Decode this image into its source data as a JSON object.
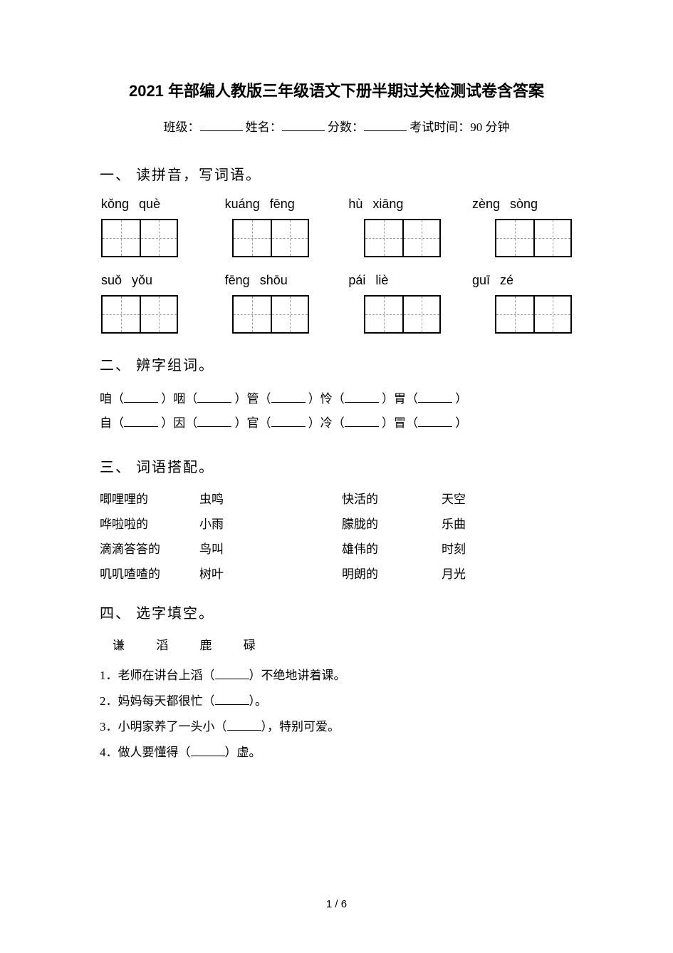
{
  "title": "2021 年部编人教版三年级语文下册半期过关检测试卷含答案",
  "header": {
    "class_label": "班级：",
    "name_label": "姓名：",
    "score_label": "分数：",
    "exam_time_label": "考试时间：90 分钟"
  },
  "section1": {
    "heading": "一、 读拼音，写词语。",
    "row1": [
      [
        "kǒng",
        "què"
      ],
      [
        "kuáng",
        "fēng"
      ],
      [
        "hù",
        "xiāng"
      ],
      [
        "zèng",
        "sòng"
      ]
    ],
    "row2": [
      [
        "suǒ",
        "yǒu"
      ],
      [
        "fēng",
        "shōu"
      ],
      [
        "pái",
        "liè"
      ],
      [
        "guī",
        "zé"
      ]
    ]
  },
  "section2": {
    "heading": "二、 辨字组词。",
    "line1": [
      "咱（",
      "）咽（",
      "）管（",
      "）怜（",
      "）胃（",
      "）"
    ],
    "line2": [
      "自（",
      "）因（",
      "）官（",
      "）冷（",
      "）冒（",
      "）"
    ]
  },
  "section3": {
    "heading": "三、 词语搭配。",
    "rows": [
      [
        "唧哩哩的",
        "虫鸣",
        "快活的",
        "天空"
      ],
      [
        "哗啦啦的",
        "小雨",
        "朦胧的",
        "乐曲"
      ],
      [
        "滴滴答答的",
        "鸟叫",
        "雄伟的",
        "时刻"
      ],
      [
        "叽叽喳喳的",
        "树叶",
        "明朗的",
        "月光"
      ]
    ]
  },
  "section4": {
    "heading": "四、 选字填空。",
    "chars": [
      "谦",
      "滔",
      "鹿",
      "碌"
    ],
    "lines": [
      "1．老师在讲台上滔（_____）不绝地讲着课。",
      "2．妈妈每天都很忙（_____）。",
      "3．小明家养了一头小（_____），特别可爱。",
      "4．做人要懂得（_____）虚。"
    ]
  },
  "page_number": "1 / 6",
  "colors": {
    "text": "#000000",
    "background": "#ffffff",
    "dashed": "#999999"
  }
}
